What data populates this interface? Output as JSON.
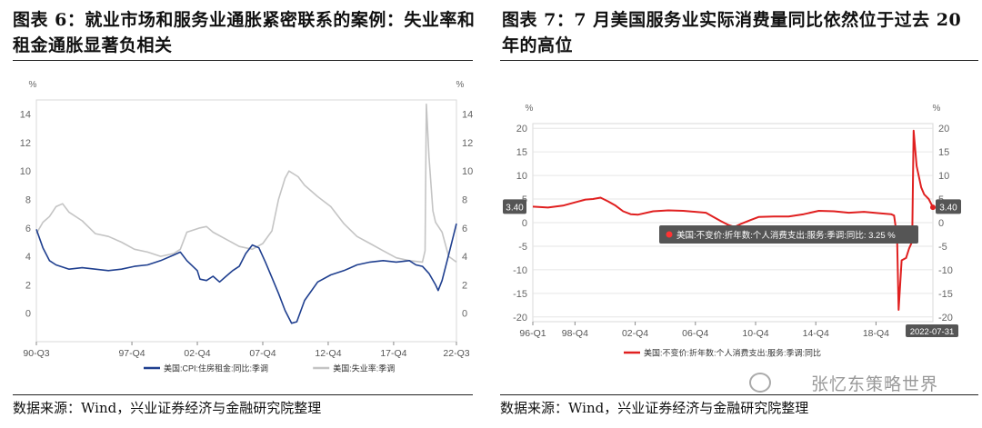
{
  "left": {
    "title": "图表 6：就业市场和服务业通胀紧密联系的案例：失业率和租金通胀显著负相关",
    "source": "数据来源：Wind，兴业证券经济与金融研究院整理",
    "chart_data": {
      "type": "line",
      "y_unit_left": "%",
      "y_unit_right": "%",
      "ylim": [
        -2,
        15
      ],
      "yticks": [
        0,
        2,
        4,
        6,
        8,
        10,
        12,
        14
      ],
      "x_tick_labels": [
        "90-Q3",
        "97-Q4",
        "02-Q4",
        "07-Q4",
        "12-Q4",
        "17-Q4",
        "22-Q3"
      ],
      "x_range": [
        1990.5,
        2022.6
      ],
      "x_tick_positions": [
        1990.5,
        1997.8,
        2002.8,
        2007.8,
        2012.8,
        2017.8,
        2022.6
      ],
      "legend_placement": "bottom",
      "series": [
        {
          "name": "美国:CPI:住房租金:同比:季调",
          "color": "#1f3f8f",
          "points": [
            [
              1990.5,
              5.9
            ],
            [
              1991.0,
              4.6
            ],
            [
              1991.5,
              3.7
            ],
            [
              1992.0,
              3.4
            ],
            [
              1993.0,
              3.1
            ],
            [
              1994.0,
              3.2
            ],
            [
              1995.0,
              3.1
            ],
            [
              1996.0,
              3.0
            ],
            [
              1997.0,
              3.1
            ],
            [
              1998.0,
              3.3
            ],
            [
              1999.0,
              3.4
            ],
            [
              2000.0,
              3.7
            ],
            [
              2001.0,
              4.1
            ],
            [
              2001.5,
              4.3
            ],
            [
              2002.0,
              3.7
            ],
            [
              2002.8,
              3.0
            ],
            [
              2003.0,
              2.4
            ],
            [
              2003.5,
              2.3
            ],
            [
              2004.0,
              2.6
            ],
            [
              2004.5,
              2.2
            ],
            [
              2005.0,
              2.6
            ],
            [
              2005.5,
              3.0
            ],
            [
              2006.0,
              3.3
            ],
            [
              2006.5,
              4.2
            ],
            [
              2007.0,
              4.8
            ],
            [
              2007.5,
              4.6
            ],
            [
              2008.0,
              3.6
            ],
            [
              2008.5,
              2.5
            ],
            [
              2009.0,
              1.4
            ],
            [
              2009.5,
              0.2
            ],
            [
              2010.0,
              -0.7
            ],
            [
              2010.4,
              -0.6
            ],
            [
              2011.0,
              0.9
            ],
            [
              2012.0,
              2.2
            ],
            [
              2013.0,
              2.7
            ],
            [
              2014.0,
              3.0
            ],
            [
              2015.0,
              3.4
            ],
            [
              2016.0,
              3.6
            ],
            [
              2017.0,
              3.7
            ],
            [
              2018.0,
              3.6
            ],
            [
              2019.0,
              3.7
            ],
            [
              2019.5,
              3.4
            ],
            [
              2020.0,
              3.3
            ],
            [
              2020.5,
              2.8
            ],
            [
              2021.0,
              2.0
            ],
            [
              2021.2,
              1.6
            ],
            [
              2021.5,
              2.3
            ],
            [
              2022.0,
              4.1
            ],
            [
              2022.6,
              6.3
            ]
          ]
        },
        {
          "name": "美国:失业率:季调",
          "color": "#c4c4c4",
          "points": [
            [
              1990.5,
              5.6
            ],
            [
              1991.0,
              6.4
            ],
            [
              1991.5,
              6.8
            ],
            [
              1992.0,
              7.5
            ],
            [
              1992.5,
              7.7
            ],
            [
              1993.0,
              7.1
            ],
            [
              1994.0,
              6.5
            ],
            [
              1995.0,
              5.6
            ],
            [
              1996.0,
              5.4
            ],
            [
              1997.0,
              5.0
            ],
            [
              1998.0,
              4.5
            ],
            [
              1999.0,
              4.3
            ],
            [
              2000.0,
              4.0
            ],
            [
              2001.0,
              4.2
            ],
            [
              2001.5,
              4.5
            ],
            [
              2002.0,
              5.7
            ],
            [
              2003.0,
              6.0
            ],
            [
              2003.5,
              6.1
            ],
            [
              2004.0,
              5.7
            ],
            [
              2005.0,
              5.2
            ],
            [
              2006.0,
              4.7
            ],
            [
              2007.0,
              4.5
            ],
            [
              2007.8,
              4.9
            ],
            [
              2008.5,
              5.8
            ],
            [
              2009.0,
              8.0
            ],
            [
              2009.5,
              9.5
            ],
            [
              2009.8,
              10.0
            ],
            [
              2010.5,
              9.6
            ],
            [
              2011.0,
              9.0
            ],
            [
              2012.0,
              8.2
            ],
            [
              2013.0,
              7.5
            ],
            [
              2014.0,
              6.3
            ],
            [
              2015.0,
              5.4
            ],
            [
              2016.0,
              4.9
            ],
            [
              2017.0,
              4.4
            ],
            [
              2018.0,
              3.9
            ],
            [
              2019.0,
              3.7
            ],
            [
              2020.0,
              3.6
            ],
            [
              2020.2,
              4.4
            ],
            [
              2020.3,
              14.7
            ],
            [
              2020.5,
              11.0
            ],
            [
              2020.8,
              7.2
            ],
            [
              2021.0,
              6.4
            ],
            [
              2021.5,
              5.7
            ],
            [
              2022.0,
              4.0
            ],
            [
              2022.6,
              3.6
            ]
          ]
        }
      ]
    }
  },
  "right": {
    "title": "图表 7：7 月美国服务业实际消费量同比依然位于过去 20 年的高位",
    "source": "数据来源：Wind，兴业证券经济与金融研究院整理",
    "watermark": "张忆东策略世界",
    "chart_data": {
      "type": "line",
      "y_unit_left": "%",
      "y_unit_right": "%",
      "ylim": [
        -21,
        21
      ],
      "yticks": [
        -20,
        -15,
        -10,
        -5,
        0,
        5,
        10,
        15,
        20
      ],
      "x_tick_labels": [
        "96-Q1",
        "98-Q4",
        "02-Q4",
        "06-Q4",
        "10-Q4",
        "14-Q4",
        "18-Q4"
      ],
      "x_range": [
        1996.0,
        2022.58
      ],
      "x_tick_positions": [
        1996.0,
        1998.8,
        2002.8,
        2006.8,
        2010.8,
        2014.8,
        2018.8
      ],
      "end_date_label": "2022-07-31",
      "flag_left": "3.40",
      "flag_right": "3.40",
      "tooltip": "美国:不变价:折年数:个人消费支出:服务:季调:同比: 3.25 %",
      "legend_placement": "bottom",
      "series": [
        {
          "name": "美国:不变价:折年数:个人消费支出:服务:季调:同比",
          "color": "#e02020",
          "points": [
            [
              1996.0,
              3.4
            ],
            [
              1997.0,
              3.2
            ],
            [
              1998.0,
              3.6
            ],
            [
              1998.8,
              4.3
            ],
            [
              1999.5,
              4.9
            ],
            [
              2000.0,
              5.0
            ],
            [
              2000.5,
              5.3
            ],
            [
              2001.0,
              4.5
            ],
            [
              2001.5,
              3.6
            ],
            [
              2002.0,
              2.4
            ],
            [
              2002.5,
              1.8
            ],
            [
              2003.0,
              1.7
            ],
            [
              2004.0,
              2.4
            ],
            [
              2005.0,
              2.6
            ],
            [
              2006.0,
              2.5
            ],
            [
              2006.8,
              2.3
            ],
            [
              2007.5,
              2.1
            ],
            [
              2008.0,
              1.2
            ],
            [
              2008.5,
              0.3
            ],
            [
              2009.0,
              -0.5
            ],
            [
              2009.4,
              -0.9
            ],
            [
              2009.8,
              -0.3
            ],
            [
              2010.5,
              0.6
            ],
            [
              2011.0,
              1.2
            ],
            [
              2012.0,
              1.3
            ],
            [
              2013.0,
              1.3
            ],
            [
              2014.0,
              1.8
            ],
            [
              2015.0,
              2.5
            ],
            [
              2016.0,
              2.4
            ],
            [
              2017.0,
              2.1
            ],
            [
              2018.0,
              2.3
            ],
            [
              2019.0,
              2.0
            ],
            [
              2019.8,
              1.8
            ],
            [
              2020.0,
              1.5
            ],
            [
              2020.2,
              -3.0
            ],
            [
              2020.3,
              -18.5
            ],
            [
              2020.5,
              -8.0
            ],
            [
              2020.8,
              -7.5
            ],
            [
              2021.0,
              -5.5
            ],
            [
              2021.2,
              -4.0
            ],
            [
              2021.3,
              19.5
            ],
            [
              2021.5,
              12.0
            ],
            [
              2021.8,
              7.5
            ],
            [
              2022.0,
              6.0
            ],
            [
              2022.3,
              5.0
            ],
            [
              2022.58,
              3.25
            ]
          ]
        }
      ]
    }
  }
}
